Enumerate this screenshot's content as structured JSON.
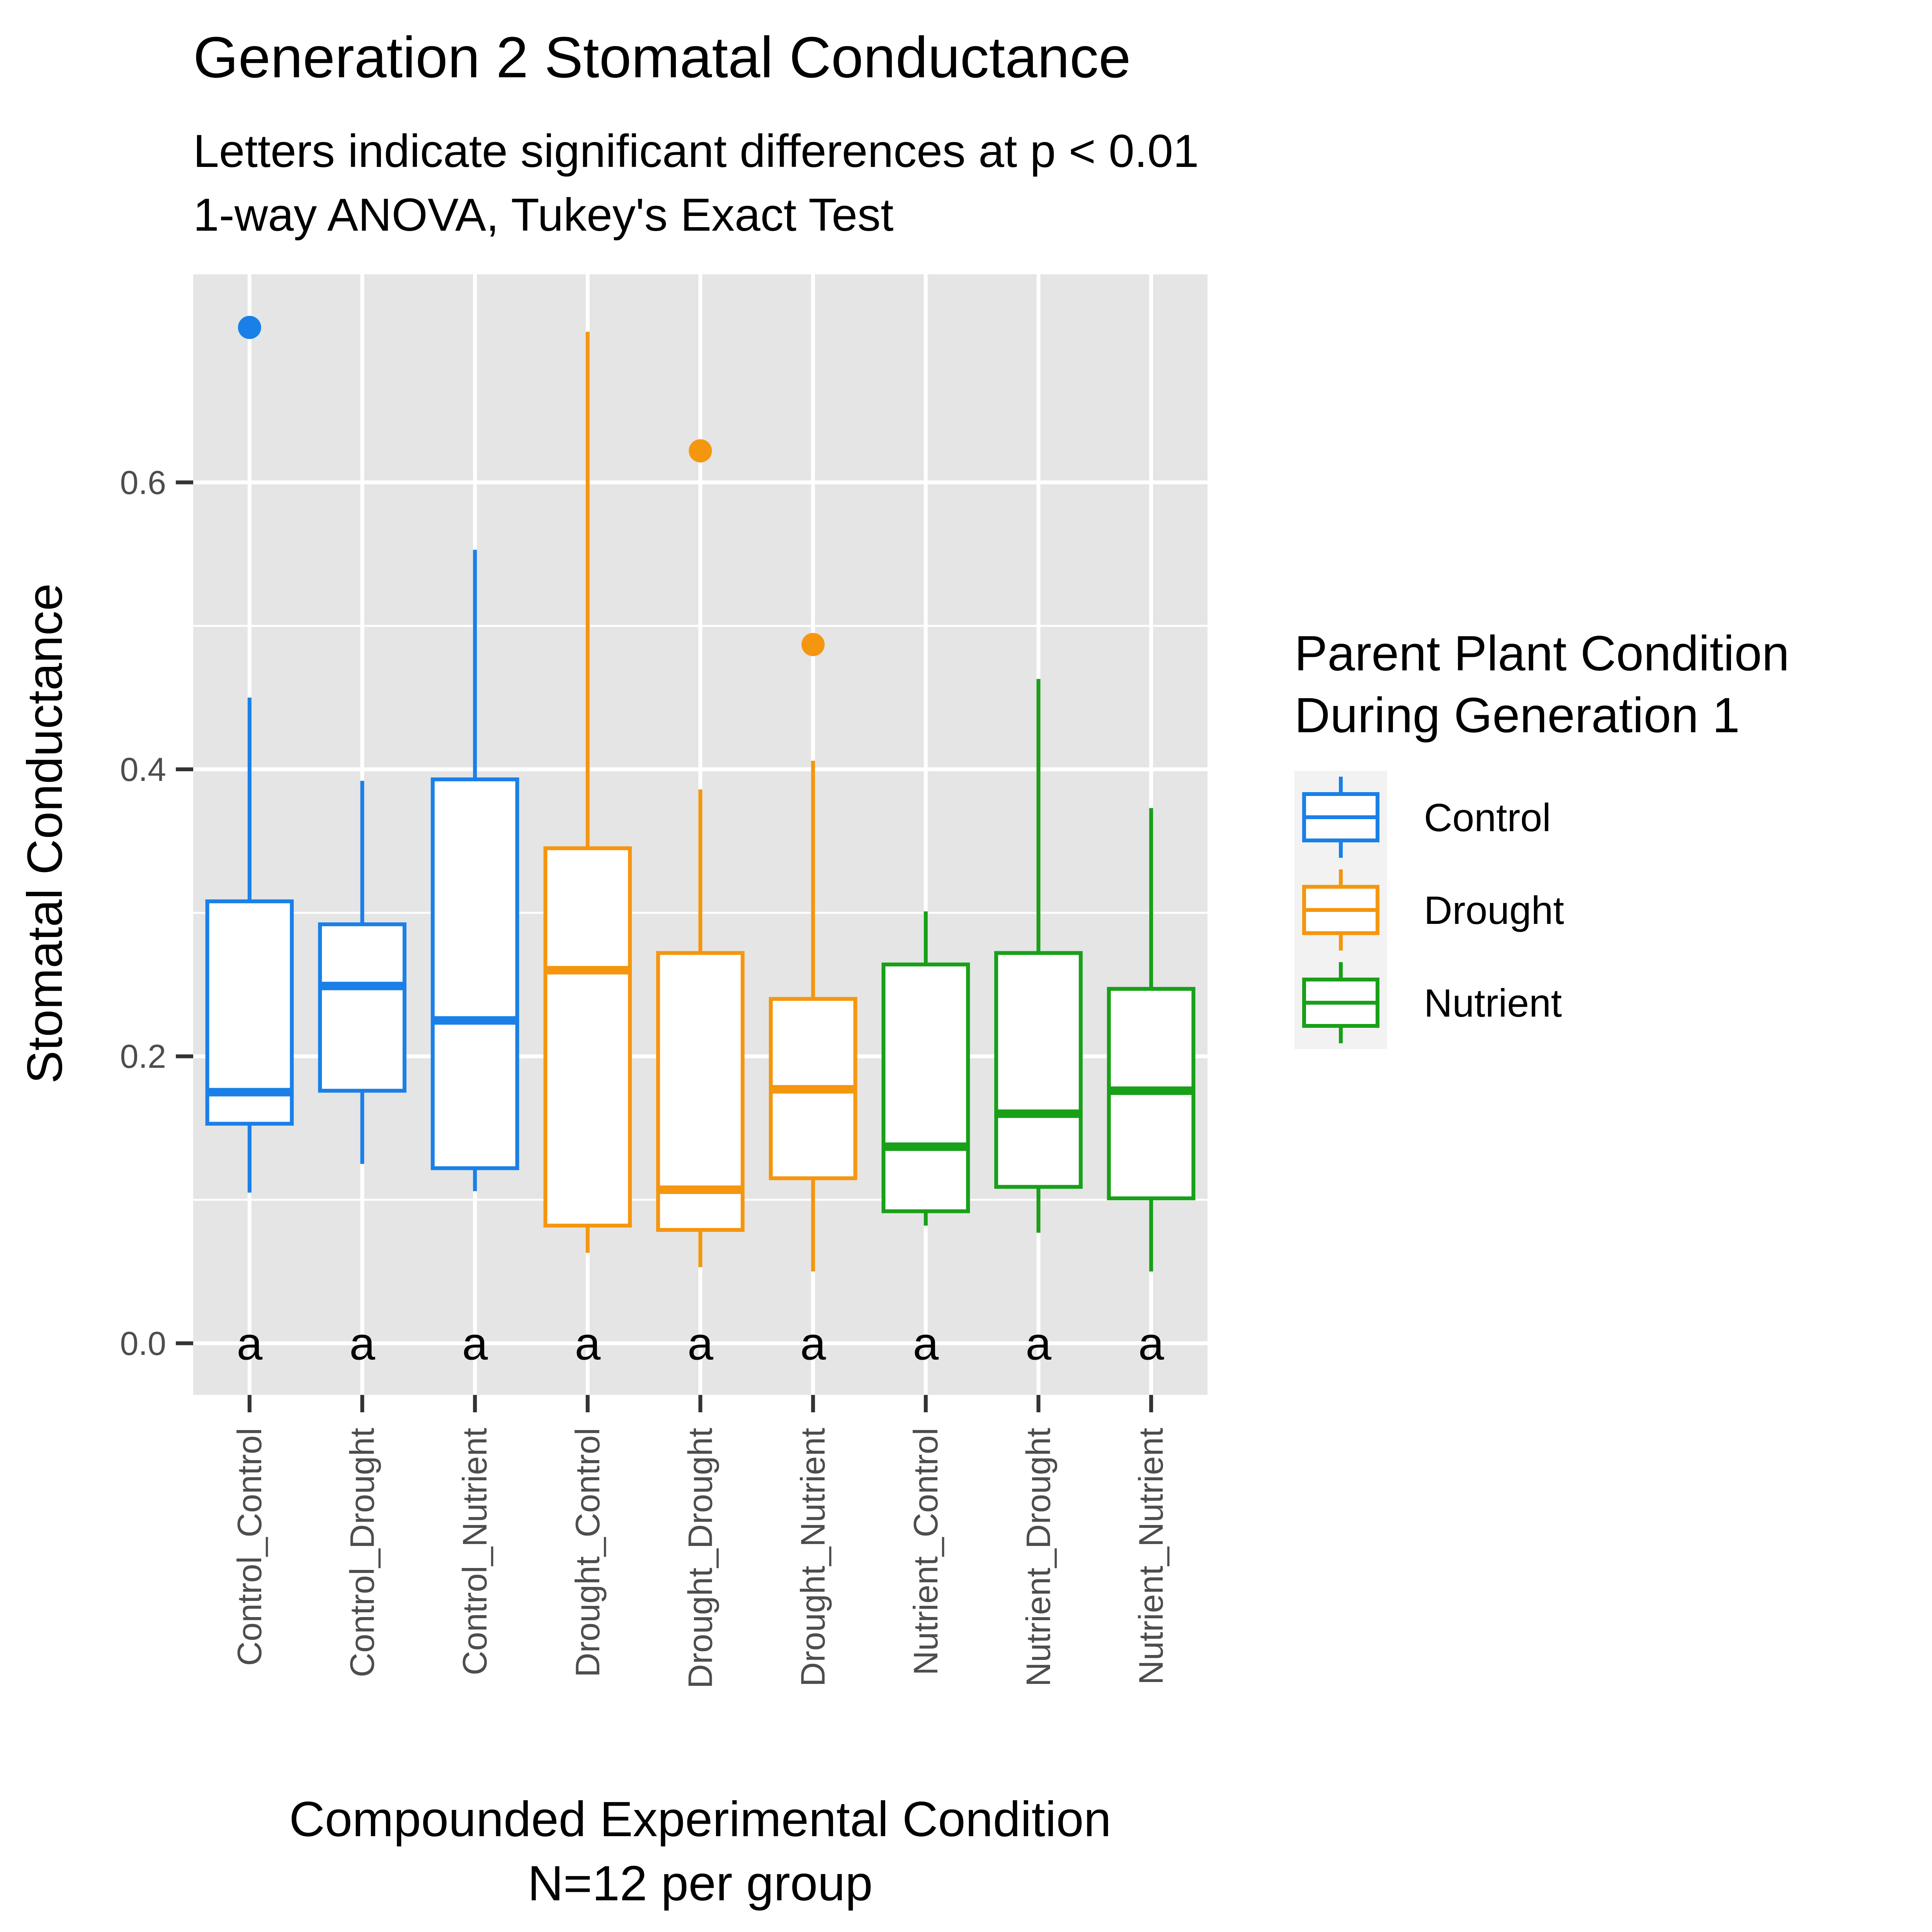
{
  "chart_data": {
    "type": "boxplot",
    "title": "Generation 2 Stomatal Conductance",
    "subtitle_lines": [
      "Letters indicate significant differences at p < 0.01",
      "1-way ANOVA, Tukey's Exact Test"
    ],
    "xlabel_lines": [
      "Compounded Experimental Condition",
      "N=12 per group"
    ],
    "ylabel": "Stomatal Conductance",
    "ylim": [
      -0.036,
      0.745
    ],
    "y_ticks": [
      0.0,
      0.2,
      0.4,
      0.6
    ],
    "y_tick_labels": [
      "0.0",
      "0.2",
      "0.4",
      "0.6"
    ],
    "grid": true,
    "legend": {
      "title_lines": [
        "Parent Plant Condition",
        "During Generation 1"
      ],
      "position": "right",
      "entries": [
        {
          "label": "Control",
          "color": "#1a80e8"
        },
        {
          "label": "Drought",
          "color": "#f5960f"
        },
        {
          "label": "Nutrient",
          "color": "#18a018"
        }
      ]
    },
    "categories": [
      "Control_Control",
      "Control_Drought",
      "Control_Nutrient",
      "Drought_Control",
      "Drought_Drought",
      "Drought_Nutrient",
      "Nutrient_Control",
      "Nutrient_Drought",
      "Nutrient_Nutrient"
    ],
    "boxes": [
      {
        "category": "Control_Control",
        "group": "Control",
        "min": 0.105,
        "q1": 0.153,
        "median": 0.175,
        "q3": 0.308,
        "max": 0.45,
        "outliers": [
          0.708
        ],
        "letter": "a"
      },
      {
        "category": "Control_Drought",
        "group": "Control",
        "min": 0.125,
        "q1": 0.176,
        "median": 0.249,
        "q3": 0.292,
        "max": 0.392,
        "outliers": [],
        "letter": "a"
      },
      {
        "category": "Control_Nutrient",
        "group": "Control",
        "min": 0.106,
        "q1": 0.122,
        "median": 0.225,
        "q3": 0.393,
        "max": 0.553,
        "outliers": [],
        "letter": "a"
      },
      {
        "category": "Drought_Control",
        "group": "Drought",
        "min": 0.063,
        "q1": 0.082,
        "median": 0.26,
        "q3": 0.345,
        "max": 0.705,
        "outliers": [],
        "letter": "a"
      },
      {
        "category": "Drought_Drought",
        "group": "Drought",
        "min": 0.053,
        "q1": 0.079,
        "median": 0.107,
        "q3": 0.272,
        "max": 0.386,
        "outliers": [
          0.622
        ],
        "letter": "a"
      },
      {
        "category": "Drought_Nutrient",
        "group": "Drought",
        "min": 0.05,
        "q1": 0.115,
        "median": 0.177,
        "q3": 0.24,
        "max": 0.406,
        "outliers": [
          0.487
        ],
        "letter": "a"
      },
      {
        "category": "Nutrient_Control",
        "group": "Nutrient",
        "min": 0.082,
        "q1": 0.092,
        "median": 0.137,
        "q3": 0.264,
        "max": 0.301,
        "outliers": [],
        "letter": "a"
      },
      {
        "category": "Nutrient_Drought",
        "group": "Nutrient",
        "min": 0.077,
        "q1": 0.109,
        "median": 0.16,
        "q3": 0.272,
        "max": 0.463,
        "outliers": [],
        "letter": "a"
      },
      {
        "category": "Nutrient_Nutrient",
        "group": "Nutrient",
        "min": 0.05,
        "q1": 0.101,
        "median": 0.176,
        "q3": 0.247,
        "max": 0.373,
        "outliers": [],
        "letter": "a"
      }
    ],
    "letter_y": 0.0
  }
}
